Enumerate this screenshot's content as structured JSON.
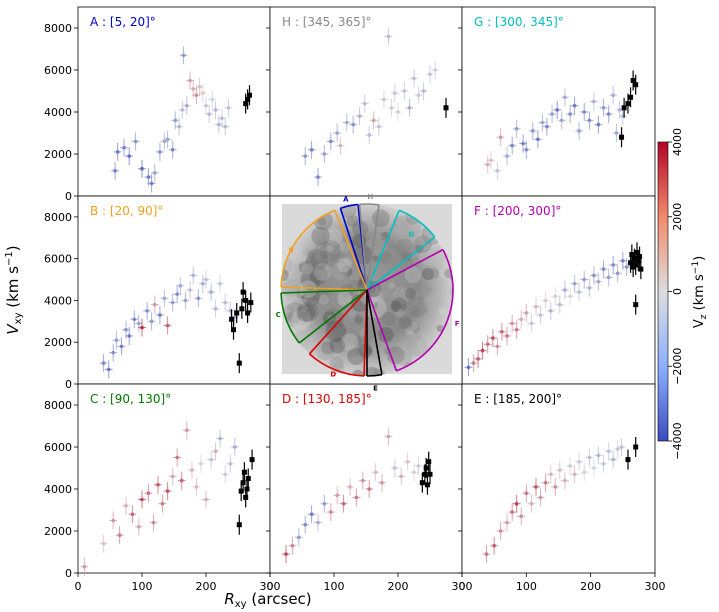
{
  "figure": {
    "x_axis_label": "R",
    "x_axis_label_sub": "xy",
    "x_axis_unit": " (arcsec)",
    "y_axis_label": "V",
    "y_axis_label_sub": "xy",
    "y_axis_unit": " (km s",
    "y_axis_unit_sup": "−1",
    "y_axis_unit_close": ")"
  },
  "colorbar": {
    "label": "V",
    "label_sub": "z",
    "label_unit": " (km s",
    "label_unit_sup": "−1",
    "label_unit_close": ")",
    "ticks": [
      "4000",
      "2000",
      "0",
      "−2000",
      "−4000"
    ],
    "tick_values": [
      4000,
      2000,
      0,
      -2000,
      -4000
    ],
    "range": [
      -4000,
      4000
    ],
    "colormap": "coolwarm",
    "color_low": "#3b4cc0",
    "color_mid": "#dddddd",
    "color_high": "#b40426"
  },
  "axes": {
    "x_ticks": [
      "0",
      "100",
      "200",
      "300"
    ],
    "x_tick_values": [
      0,
      100,
      200,
      300
    ],
    "y_ticks": [
      "0",
      "2000",
      "4000",
      "6000",
      "8000"
    ],
    "y_tick_values": [
      0,
      2000,
      4000,
      6000,
      8000
    ],
    "xlim": [
      0,
      300
    ],
    "ylim": [
      0,
      9000
    ]
  },
  "center_image": {
    "description_labels": [
      "A",
      "H",
      "G",
      "B",
      "F",
      "C",
      "D",
      "E"
    ],
    "sector_colors": {
      "A": "#0000cc",
      "H": "#888888",
      "G": "#00bfbf",
      "B": "#f0a020",
      "F": "#b000b0",
      "C": "#007700",
      "D": "#dd0000",
      "E": "#000000"
    }
  },
  "chart_data": [
    {
      "type": "scatter",
      "panel": "A",
      "title": "A : [5, 20]°",
      "title_color": "#0000cc",
      "xlim": [
        0,
        300
      ],
      "ylim": [
        0,
        9000
      ],
      "x": [
        58,
        62,
        72,
        80,
        90,
        100,
        110,
        115,
        120,
        128,
        135,
        140,
        148,
        152,
        158,
        163,
        165,
        170,
        175,
        180,
        185,
        190,
        195,
        200,
        205,
        210,
        215,
        220,
        225,
        230,
        235
      ],
      "y": [
        1200,
        2100,
        2300,
        1900,
        2600,
        1300,
        900,
        600,
        1100,
        2100,
        2600,
        2700,
        2200,
        3600,
        3300,
        4100,
        6700,
        4300,
        5500,
        5100,
        4800,
        5200,
        4900,
        4300,
        3900,
        4600,
        4100,
        3400,
        3700,
        3300,
        4200
      ],
      "vz": [
        -2600,
        -2800,
        -2400,
        -3000,
        -2000,
        -3200,
        -2800,
        -2600,
        -1800,
        -2200,
        -1400,
        -1600,
        -2400,
        -1800,
        -1200,
        -900,
        -2000,
        -1400,
        1200,
        900,
        1500,
        700,
        300,
        -600,
        -900,
        -400,
        -1100,
        -1200,
        -900,
        -1000,
        -800
      ],
      "edge_x": [
        262,
        265,
        268
      ],
      "edge_y": [
        4400,
        4600,
        4800
      ]
    },
    {
      "type": "scatter",
      "panel": "H",
      "title": "H : [345, 365]°",
      "title_color": "#888888",
      "xlim": [
        0,
        300
      ],
      "ylim": [
        0,
        9000
      ],
      "x": [
        55,
        65,
        75,
        85,
        95,
        105,
        110,
        120,
        130,
        140,
        148,
        155,
        162,
        170,
        178,
        185,
        190,
        195,
        200,
        210,
        218,
        225,
        232,
        240,
        250,
        258
      ],
      "y": [
        1900,
        2200,
        900,
        2000,
        2600,
        3000,
        2400,
        3500,
        3400,
        3800,
        4400,
        2900,
        3600,
        3300,
        4600,
        7600,
        4200,
        4900,
        4000,
        5000,
        4200,
        5600,
        4800,
        5000,
        5800,
        6000
      ],
      "vz": [
        -2000,
        -2600,
        -2400,
        -1800,
        -2200,
        -1600,
        800,
        -1400,
        -2000,
        -1200,
        -900,
        -1000,
        1200,
        -800,
        -600,
        -1000,
        -500,
        -700,
        300,
        -800,
        -1400,
        -900,
        -600,
        -1100,
        -700,
        -500
      ],
      "edge_x": [
        275
      ],
      "edge_y": [
        4200
      ]
    },
    {
      "type": "scatter",
      "panel": "G",
      "title": "G : [300, 345]°",
      "title_color": "#00bfbf",
      "xlim": [
        0,
        300
      ],
      "ylim": [
        0,
        9000
      ],
      "x": [
        40,
        45,
        55,
        60,
        70,
        78,
        85,
        95,
        100,
        110,
        118,
        125,
        132,
        140,
        148,
        155,
        160,
        168,
        175,
        182,
        190,
        198,
        205,
        212,
        220,
        228,
        235,
        240,
        245,
        250
      ],
      "y": [
        1500,
        1700,
        1200,
        2800,
        1900,
        2400,
        3200,
        2500,
        2200,
        3100,
        2700,
        3500,
        3300,
        3900,
        4100,
        3600,
        4700,
        3900,
        4300,
        3100,
        4000,
        3600,
        4500,
        3400,
        4200,
        3900,
        4800,
        3000,
        4100,
        3800
      ],
      "vz": [
        900,
        600,
        -800,
        1200,
        -1500,
        -2400,
        -1800,
        -2600,
        -2200,
        -2000,
        -2800,
        -1500,
        -2400,
        -1800,
        -2900,
        -1600,
        -1400,
        -2100,
        -2600,
        -1800,
        -2400,
        -2200,
        -1300,
        -2700,
        -1900,
        -2400,
        -1400,
        -1600,
        -1100,
        -900
      ],
      "edge_x": [
        248,
        252,
        258,
        262,
        266,
        270
      ],
      "edge_y": [
        2800,
        4200,
        4400,
        4700,
        5500,
        5300
      ]
    },
    {
      "type": "scatter",
      "panel": "B",
      "title": "B : [20, 90]°",
      "title_color": "#f0a020",
      "xlim": [
        0,
        300
      ],
      "ylim": [
        0,
        9000
      ],
      "x": [
        40,
        48,
        55,
        60,
        68,
        75,
        80,
        88,
        95,
        100,
        108,
        115,
        120,
        128,
        135,
        140,
        148,
        155,
        160,
        168,
        175,
        180,
        188,
        195,
        200,
        208,
        215,
        222,
        230,
        238,
        245
      ],
      "y": [
        1000,
        700,
        1500,
        2100,
        1800,
        2600,
        2300,
        3100,
        2900,
        2700,
        3500,
        3000,
        3800,
        3300,
        4100,
        2800,
        3900,
        4300,
        4700,
        4000,
        4500,
        5200,
        4100,
        4800,
        5000,
        4400,
        3600,
        4800,
        3900,
        3500,
        3200
      ],
      "vz": [
        -2400,
        -2800,
        -2200,
        -1800,
        -2600,
        -2000,
        -2700,
        -2400,
        -1600,
        3200,
        -2300,
        -1800,
        1400,
        -2600,
        -1500,
        2400,
        -1800,
        -2200,
        -1400,
        -1600,
        -900,
        -1200,
        -2000,
        -1300,
        -800,
        -1400,
        -1000,
        -600,
        -900,
        -1200,
        -1500
      ],
      "edge_x": [
        240,
        243,
        248,
        252,
        256,
        258,
        262,
        265,
        270
      ],
      "edge_y": [
        3100,
        2600,
        3400,
        1000,
        3600,
        4400,
        4000,
        3400,
        3900
      ]
    },
    {
      "type": "scatter",
      "panel": "F",
      "title": "F : [200, 300]°",
      "title_color": "#b000b0",
      "xlim": [
        0,
        300
      ],
      "ylim": [
        0,
        9000
      ],
      "x": [
        10,
        18,
        25,
        32,
        40,
        48,
        55,
        62,
        70,
        78,
        85,
        92,
        100,
        108,
        115,
        122,
        130,
        138,
        145,
        152,
        160,
        168,
        175,
        182,
        190,
        198,
        205,
        212,
        220,
        228,
        235,
        242,
        250,
        256
      ],
      "y": [
        800,
        1000,
        1200,
        1600,
        1900,
        2200,
        1800,
        2500,
        2300,
        2900,
        2600,
        3100,
        3400,
        2900,
        3700,
        3300,
        4000,
        3500,
        4200,
        3800,
        4500,
        4200,
        4800,
        4400,
        5000,
        4600,
        5200,
        4900,
        5500,
        5100,
        5700,
        5300,
        5900,
        5600
      ],
      "vz": [
        -3000,
        1800,
        2400,
        2900,
        2100,
        2600,
        1500,
        2200,
        1900,
        1400,
        1800,
        900,
        1100,
        -600,
        700,
        -800,
        400,
        -1200,
        300,
        -1000,
        -1400,
        200,
        -1600,
        -900,
        -1800,
        -1200,
        -2000,
        -1500,
        -2200,
        -1700,
        -2400,
        -1900,
        -2500,
        -2100
      ],
      "edge_x": [
        262,
        264,
        266,
        268,
        270,
        272,
        274,
        276,
        278,
        270
      ],
      "edge_y": [
        5800,
        6200,
        5600,
        6000,
        5700,
        6300,
        5900,
        6100,
        5500,
        3800
      ]
    },
    {
      "type": "scatter",
      "panel": "C",
      "title": "C : [90, 130]°",
      "title_color": "#007700",
      "xlim": [
        0,
        300
      ],
      "ylim": [
        0,
        9000
      ],
      "x": [
        10,
        40,
        55,
        65,
        75,
        85,
        95,
        100,
        110,
        118,
        125,
        132,
        140,
        148,
        155,
        162,
        170,
        178,
        185,
        192,
        200,
        208,
        215,
        222,
        230,
        238,
        245
      ],
      "y": [
        300,
        1400,
        2500,
        1800,
        3200,
        2800,
        2200,
        3500,
        3800,
        2400,
        4200,
        3300,
        3900,
        4600,
        5500,
        4400,
        6800,
        4900,
        4100,
        5200,
        3500,
        5400,
        5800,
        6400,
        4700,
        5200,
        6000
      ],
      "vz": [
        1200,
        600,
        1400,
        1800,
        900,
        2200,
        1100,
        2800,
        2000,
        1500,
        2400,
        1700,
        2600,
        1000,
        1900,
        2300,
        1300,
        800,
        700,
        -300,
        1000,
        -800,
        900,
        -1200,
        -500,
        -900,
        -1400
      ],
      "edge_x": [
        252,
        255,
        258,
        260,
        262,
        264,
        266,
        272
      ],
      "edge_y": [
        2300,
        3900,
        4300,
        4800,
        3600,
        4000,
        4500,
        5400
      ]
    },
    {
      "type": "scatter",
      "panel": "D",
      "title": "D : [130, 185]°",
      "title_color": "#dd0000",
      "xlim": [
        0,
        300
      ],
      "ylim": [
        0,
        9000
      ],
      "x": [
        25,
        35,
        45,
        55,
        65,
        75,
        85,
        95,
        105,
        115,
        125,
        135,
        145,
        155,
        165,
        175,
        185,
        195,
        205,
        215,
        225,
        232
      ],
      "y": [
        900,
        1300,
        1700,
        2300,
        2800,
        2400,
        3300,
        2900,
        3700,
        3300,
        4100,
        3600,
        4400,
        4000,
        4800,
        4300,
        6500,
        5000,
        4600,
        5300,
        4800,
        5100
      ],
      "vz": [
        2800,
        1600,
        -1800,
        -2200,
        -2600,
        -1400,
        -1800,
        1600,
        1200,
        2200,
        900,
        1800,
        1400,
        2000,
        700,
        1300,
        1100,
        -800,
        900,
        500,
        -400,
        -600
      ],
      "edge_x": [
        238,
        242,
        244,
        246,
        248,
        250
      ],
      "edge_y": [
        4300,
        4700,
        5000,
        4200,
        5300,
        4700
      ]
    },
    {
      "type": "scatter",
      "panel": "E",
      "title": "E : [185, 200]°",
      "title_color": "#000000",
      "xlim": [
        0,
        300
      ],
      "ylim": [
        0,
        9000
      ],
      "x": [
        38,
        50,
        60,
        70,
        78,
        85,
        92,
        100,
        108,
        115,
        122,
        130,
        138,
        145,
        152,
        160,
        168,
        175,
        182,
        190,
        198,
        205,
        212,
        220,
        228,
        235,
        242,
        248
      ],
      "y": [
        900,
        1300,
        2000,
        2400,
        2900,
        3300,
        2700,
        3800,
        3300,
        4100,
        3600,
        4300,
        4700,
        4100,
        4900,
        4400,
        5100,
        4700,
        5300,
        4800,
        5500,
        5000,
        5600,
        5200,
        5800,
        5400,
        5900,
        6000
      ],
      "vz": [
        1800,
        2400,
        1600,
        1200,
        2000,
        2900,
        1500,
        1800,
        900,
        2600,
        1300,
        1900,
        700,
        1500,
        600,
        900,
        -400,
        800,
        -600,
        300,
        -900,
        -300,
        -1100,
        -700,
        -800,
        -1200,
        -600,
        -900
      ],
      "edge_x": [
        258,
        270
      ],
      "edge_y": [
        5400,
        6000
      ]
    }
  ]
}
